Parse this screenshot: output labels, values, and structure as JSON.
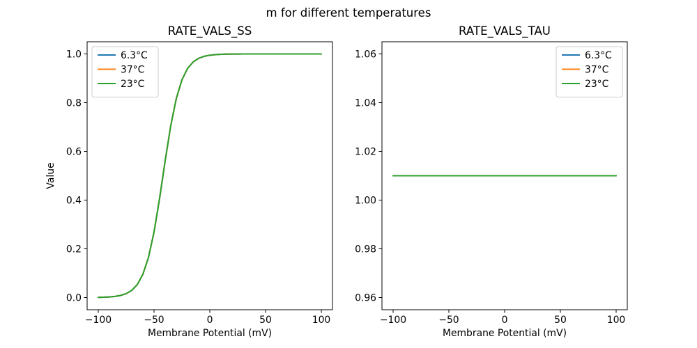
{
  "figure": {
    "suptitle": "m for different temperatures",
    "background": "#ffffff"
  },
  "chart_data": [
    {
      "type": "line",
      "title": "RATE_VALS_SS",
      "xlabel": "Membrane Potential (mV)",
      "ylabel": "Value",
      "xlim": [
        -110,
        110
      ],
      "ylim": [
        -0.05,
        1.05
      ],
      "xticks": {
        "values": [
          -100,
          -50,
          0,
          50,
          100
        ],
        "labels": [
          "−100",
          "−50",
          "0",
          "50",
          "100"
        ]
      },
      "yticks": {
        "values": [
          0.0,
          0.2,
          0.4,
          0.6,
          0.8,
          1.0
        ],
        "labels": [
          "0.0",
          "0.2",
          "0.4",
          "0.6",
          "0.8",
          "1.0"
        ]
      },
      "grid": false,
      "legend": {
        "position": "upper-left",
        "entries": [
          {
            "label": "6.3°C",
            "color": "#1f77b4"
          },
          {
            "label": "37°C",
            "color": "#ff7f0e"
          },
          {
            "label": "23°C",
            "color": "#2ca02c"
          }
        ]
      },
      "x": [
        -100,
        -95,
        -90,
        -85,
        -80,
        -75,
        -70,
        -65,
        -60,
        -55,
        -50,
        -45,
        -40,
        -35,
        -30,
        -25,
        -20,
        -15,
        -10,
        -5,
        0,
        5,
        10,
        15,
        20,
        25,
        30,
        35,
        40,
        45,
        50,
        55,
        60,
        65,
        70,
        75,
        80,
        85,
        90,
        95,
        100
      ],
      "series": [
        {
          "name": "6.3°C",
          "color": "#1f77b4",
          "y": [
            0.0007,
            0.0013,
            0.0025,
            0.0046,
            0.0086,
            0.0159,
            0.0293,
            0.0534,
            0.0954,
            0.1645,
            0.269,
            0.4073,
            0.5622,
            0.7058,
            0.8176,
            0.8933,
            0.9399,
            0.9669,
            0.982,
            0.9903,
            0.9948,
            0.9972,
            0.9985,
            0.9992,
            0.9996,
            0.9998,
            0.9999,
            0.9999,
            1.0,
            1.0,
            1.0,
            1.0,
            1.0,
            1.0,
            1.0,
            1.0,
            1.0,
            1.0,
            1.0,
            1.0,
            1.0
          ]
        },
        {
          "name": "37°C",
          "color": "#ff7f0e",
          "y": [
            0.0007,
            0.0013,
            0.0025,
            0.0046,
            0.0086,
            0.0159,
            0.0293,
            0.0534,
            0.0954,
            0.1645,
            0.269,
            0.4073,
            0.5622,
            0.7058,
            0.8176,
            0.8933,
            0.9399,
            0.9669,
            0.982,
            0.9903,
            0.9948,
            0.9972,
            0.9985,
            0.9992,
            0.9996,
            0.9998,
            0.9999,
            0.9999,
            1.0,
            1.0,
            1.0,
            1.0,
            1.0,
            1.0,
            1.0,
            1.0,
            1.0,
            1.0,
            1.0,
            1.0,
            1.0
          ]
        },
        {
          "name": "23°C",
          "color": "#2ca02c",
          "y": [
            0.0007,
            0.0013,
            0.0025,
            0.0046,
            0.0086,
            0.0159,
            0.0293,
            0.0534,
            0.0954,
            0.1645,
            0.269,
            0.4073,
            0.5622,
            0.7058,
            0.8176,
            0.8933,
            0.9399,
            0.9669,
            0.982,
            0.9903,
            0.9948,
            0.9972,
            0.9985,
            0.9992,
            0.9996,
            0.9998,
            0.9999,
            0.9999,
            1.0,
            1.0,
            1.0,
            1.0,
            1.0,
            1.0,
            1.0,
            1.0,
            1.0,
            1.0,
            1.0,
            1.0,
            1.0
          ]
        }
      ]
    },
    {
      "type": "line",
      "title": "RATE_VALS_TAU",
      "xlabel": "Membrane Potential (mV)",
      "ylabel": "Value",
      "xlim": [
        -110,
        110
      ],
      "ylim": [
        0.955,
        1.065
      ],
      "xticks": {
        "values": [
          -100,
          -50,
          0,
          50,
          100
        ],
        "labels": [
          "−100",
          "−50",
          "0",
          "50",
          "100"
        ]
      },
      "yticks": {
        "values": [
          0.96,
          0.98,
          1.0,
          1.02,
          1.04,
          1.06
        ],
        "labels": [
          "0.96",
          "0.98",
          "1.00",
          "1.02",
          "1.04",
          "1.06"
        ]
      },
      "grid": false,
      "legend": {
        "position": "upper-right",
        "entries": [
          {
            "label": "6.3°C",
            "color": "#1f77b4"
          },
          {
            "label": "37°C",
            "color": "#ff7f0e"
          },
          {
            "label": "23°C",
            "color": "#2ca02c"
          }
        ]
      },
      "x": [
        -100,
        100
      ],
      "series": [
        {
          "name": "6.3°C",
          "color": "#1f77b4",
          "y": [
            1.01,
            1.01
          ]
        },
        {
          "name": "37°C",
          "color": "#ff7f0e",
          "y": [
            1.01,
            1.01
          ]
        },
        {
          "name": "23°C",
          "color": "#2ca02c",
          "y": [
            1.01,
            1.01
          ]
        }
      ]
    }
  ]
}
